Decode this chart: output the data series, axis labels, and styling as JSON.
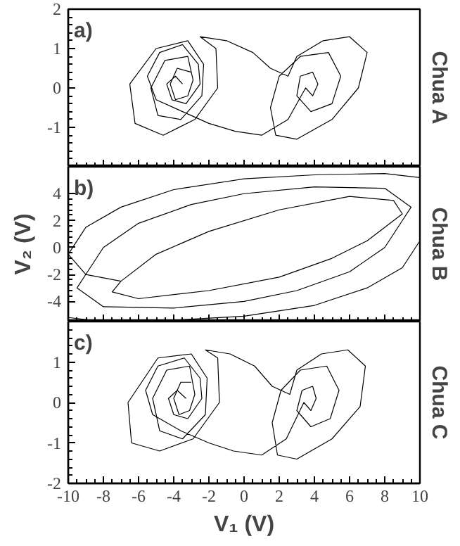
{
  "chart_data": [
    {
      "type": "line",
      "title": "Chua A",
      "annotations": [
        "a)"
      ],
      "tick_labels": "y",
      "grid": false,
      "xlim": [
        -10,
        10
      ],
      "ylim": [
        -2,
        2
      ],
      "xticks": [
        -10,
        -8,
        -6,
        -4,
        -2,
        0,
        2,
        4,
        6,
        8,
        10
      ],
      "yticks": [
        {
          "value": -2,
          "label": null
        },
        -1,
        0,
        1,
        2
      ],
      "series": [
        {
          "color": "#000000",
          "x": [
            -3,
            -3.8,
            -4.2,
            -3.9,
            -3.2,
            -2.9,
            -3.2,
            -4.5,
            -5.3,
            -4.9,
            -3.6,
            -2.4,
            -2.3,
            -3.2,
            -5,
            -6.5,
            -6.2,
            -4.6,
            -2.8,
            -1.5,
            -1.6,
            -2.5,
            -1,
            0.5,
            1.5,
            2.5,
            3,
            4.5,
            6,
            7,
            6.5,
            5,
            3,
            1.8,
            1.5,
            2,
            3.2,
            4.8,
            5.5,
            5,
            3.8,
            3,
            3.2,
            3.9,
            4.2,
            3.9,
            3.5,
            2.5,
            1,
            -0.5,
            -2,
            -3.5,
            -5,
            -5.5,
            -4.8,
            -3.5,
            -2.6,
            -2.5,
            -3.3,
            -4.1,
            -4.4,
            -3.9,
            -3.5
          ],
          "values": [
            0.4,
            0.5,
            0.1,
            -0.3,
            -0.2,
            0.2,
            0.8,
            0.7,
            0,
            -0.7,
            -0.8,
            -0.2,
            0.6,
            1.2,
            1.0,
            0.1,
            -0.9,
            -1.2,
            -0.8,
            0,
            1.0,
            1.3,
            1.2,
            0.9,
            0.5,
            0.3,
            0.8,
            1.2,
            1.3,
            0.9,
            0,
            -0.8,
            -1.3,
            -1.2,
            -0.5,
            0.3,
            0.8,
            0.9,
            0.3,
            -0.4,
            -0.6,
            -0.2,
            0.3,
            0.4,
            0.1,
            -0.2,
            0,
            -0.8,
            -1.2,
            -1.1,
            -0.9,
            -0.6,
            -0.3,
            0.3,
            0.9,
            1.1,
            0.6,
            0.1,
            -0.4,
            -0.3,
            0.1,
            0.3,
            0.1
          ]
        }
      ]
    },
    {
      "type": "line",
      "title": "Chua B",
      "annotations": [
        "b)"
      ],
      "ylabel": "V₂ (V)",
      "tick_labels": "y",
      "grid": false,
      "xlim": [
        -10,
        10
      ],
      "ylim": [
        -5.5,
        6
      ],
      "xticks": [
        -10,
        -8,
        -6,
        -4,
        -2,
        0,
        2,
        4,
        6,
        8,
        10
      ],
      "yticks": [
        -4,
        -2,
        0,
        2,
        4
      ],
      "series": [
        {
          "color": "#000000",
          "x": [
            -10,
            -9,
            -7,
            -4,
            0,
            4,
            8,
            10,
            10,
            9,
            7,
            4,
            0,
            -4,
            -8,
            -10,
            -10,
            -9,
            -8,
            -6,
            -3,
            0,
            4,
            8,
            9.5,
            9,
            8,
            6,
            3,
            0,
            -4,
            -8,
            -9.5,
            -9,
            -7,
            -5,
            -2,
            2,
            6,
            8.5,
            9,
            7,
            5,
            2,
            -2,
            -6,
            -7.5,
            -7
          ],
          "values": [
            -0.5,
            1.5,
            3,
            4.3,
            5.1,
            5.4,
            5.5,
            5.2,
            0.5,
            -1.5,
            -3,
            -4.3,
            -5.1,
            -5.4,
            -5.5,
            -5.2,
            -0.5,
            -2,
            0,
            1.8,
            3.2,
            4,
            4.5,
            4.4,
            3,
            2,
            0,
            -1.8,
            -3.2,
            -4,
            -4.5,
            -4.4,
            -3,
            -2,
            -2.5,
            -0.5,
            1.2,
            2.8,
            3.8,
            3.5,
            2.5,
            0.5,
            -0.8,
            -2.2,
            -3.2,
            -3.8,
            -3.3,
            -2.5
          ]
        }
      ]
    },
    {
      "type": "line",
      "title": "Chua C",
      "annotations": [
        "c)"
      ],
      "xlabel": "V₁ (V)",
      "grid": false,
      "xlim": [
        -10,
        10
      ],
      "ylim": [
        -2,
        2
      ],
      "xticks": [
        -10,
        -8,
        -6,
        -4,
        -2,
        0,
        2,
        4,
        6,
        8,
        10
      ],
      "yticks": [
        -2,
        -1,
        0,
        1,
        {
          "value": 2,
          "label": null
        }
      ],
      "series": [
        {
          "color": "#000000",
          "x": [
            -3,
            -3.6,
            -4,
            -3.7,
            -3.1,
            -2.8,
            -3.1,
            -4.4,
            -5.2,
            -4.8,
            -3.5,
            -2.2,
            -2.1,
            -3,
            -4.9,
            -6.6,
            -6.4,
            -4.8,
            -2.9,
            -1.4,
            -1.5,
            -2.2,
            -0.8,
            0.6,
            1.6,
            2.6,
            3,
            4.4,
            5.9,
            6.9,
            6.6,
            5,
            3,
            1.9,
            1.6,
            2.1,
            3.2,
            4.7,
            5.4,
            4.9,
            3.8,
            3,
            3.3,
            3.9,
            4.1,
            3.8,
            3.4,
            2.4,
            1,
            -0.6,
            -2,
            -3.6,
            -5.2,
            -5.6,
            -4.9,
            -3.4,
            -2.5,
            -2.4,
            -3.2,
            -4,
            -4.3,
            -3.8,
            -3.3
          ],
          "values": [
            0.5,
            0.5,
            0.1,
            -0.3,
            -0.2,
            0.2,
            0.9,
            0.8,
            0.1,
            -0.7,
            -0.9,
            -0.3,
            0.6,
            1.2,
            1.1,
            0.0,
            -1.0,
            -1.2,
            -0.9,
            0,
            1.1,
            1.3,
            1.2,
            0.9,
            0.4,
            0.2,
            0.8,
            1.2,
            1.3,
            0.9,
            -0.1,
            -0.9,
            -1.4,
            -1.3,
            -0.5,
            0.3,
            0.8,
            0.9,
            0.3,
            -0.4,
            -0.6,
            -0.2,
            0.3,
            0.4,
            0.1,
            -0.2,
            0,
            -0.9,
            -1.3,
            -1.2,
            -1.0,
            -0.7,
            -0.3,
            0.3,
            0.9,
            1.1,
            0.6,
            0.1,
            -0.4,
            -0.3,
            0.1,
            0.3,
            0.1
          ]
        }
      ]
    }
  ]
}
